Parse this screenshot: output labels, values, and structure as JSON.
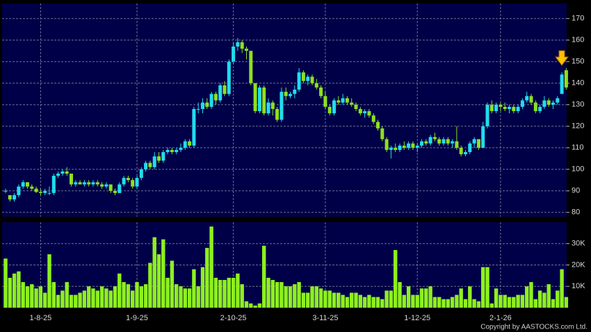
{
  "chart_data": {
    "type": "candlestick",
    "categories": [
      null,
      null,
      null,
      null,
      null,
      null,
      null,
      null,
      "1-8-25",
      null,
      null,
      null,
      null,
      null,
      null,
      null,
      null,
      null,
      null,
      null,
      null,
      null,
      null,
      null,
      null,
      null,
      null,
      null,
      null,
      null,
      "1-9-25",
      null,
      null,
      null,
      null,
      null,
      null,
      null,
      null,
      null,
      null,
      null,
      null,
      null,
      null,
      null,
      null,
      null,
      null,
      null,
      null,
      null,
      "2-10-25",
      null,
      null,
      null,
      null,
      null,
      null,
      null,
      null,
      null,
      null,
      null,
      null,
      null,
      null,
      null,
      null,
      null,
      null,
      null,
      null,
      "3-11-25",
      null,
      null,
      null,
      null,
      null,
      null,
      null,
      null,
      null,
      null,
      null,
      null,
      null,
      null,
      null,
      null,
      null,
      null,
      null,
      null,
      "1-12-25",
      null,
      null,
      null,
      null,
      null,
      null,
      null,
      null,
      null,
      null,
      null,
      null,
      null,
      null,
      null,
      null,
      null,
      null,
      "2-1-26",
      null,
      null,
      null,
      null,
      null,
      null,
      null,
      null,
      null,
      null,
      null,
      null,
      null,
      null,
      null
    ],
    "ohlc": [
      [
        90,
        91,
        89,
        90
      ],
      [
        88,
        88,
        85,
        86
      ],
      [
        86,
        89,
        85,
        88
      ],
      [
        88,
        93,
        87,
        92
      ],
      [
        92,
        95,
        91,
        94
      ],
      [
        94,
        94,
        91,
        92
      ],
      [
        92,
        93,
        90,
        91
      ],
      [
        91,
        92,
        89,
        89.5
      ],
      [
        89.5,
        91,
        88,
        89
      ],
      [
        89,
        91,
        88,
        90
      ],
      [
        89,
        92,
        88,
        89
      ],
      [
        89,
        98,
        88,
        97
      ],
      [
        97,
        99,
        96,
        98
      ],
      [
        98,
        100,
        97,
        99
      ],
      [
        99,
        101,
        97,
        98
      ],
      [
        98,
        98,
        92,
        93
      ],
      [
        93,
        95,
        92,
        94
      ],
      [
        94,
        95,
        93,
        93
      ],
      [
        93,
        95,
        92,
        94
      ],
      [
        94,
        95,
        92,
        93
      ],
      [
        93,
        95,
        92,
        94
      ],
      [
        94,
        95,
        92,
        93
      ],
      [
        93,
        94,
        91,
        92
      ],
      [
        92,
        94,
        91,
        93
      ],
      [
        93,
        93,
        89,
        90
      ],
      [
        90,
        91,
        88,
        89
      ],
      [
        89,
        94,
        89,
        93
      ],
      [
        93,
        97,
        92,
        96
      ],
      [
        96,
        97,
        94,
        95
      ],
      [
        95,
        96,
        91,
        92
      ],
      [
        92,
        97,
        91,
        96
      ],
      [
        96,
        101,
        95,
        100
      ],
      [
        100,
        104,
        99,
        103
      ],
      [
        103,
        104,
        100,
        101
      ],
      [
        101,
        108,
        100,
        106
      ],
      [
        106,
        108,
        103,
        104
      ],
      [
        104,
        109,
        103,
        108
      ],
      [
        108,
        110,
        107,
        109
      ],
      [
        109,
        110,
        107,
        108
      ],
      [
        108,
        110,
        107,
        109
      ],
      [
        109,
        112,
        108,
        110
      ],
      [
        110,
        114,
        109,
        113
      ],
      [
        113,
        114,
        110,
        111
      ],
      [
        111,
        129,
        110,
        128
      ],
      [
        128,
        131,
        126,
        128
      ],
      [
        128,
        133,
        126,
        131
      ],
      [
        131,
        133,
        128,
        129
      ],
      [
        129,
        136,
        128,
        135
      ],
      [
        135,
        136,
        130,
        132
      ],
      [
        132,
        140,
        131,
        139
      ],
      [
        139,
        141,
        134,
        135
      ],
      [
        135,
        151,
        134,
        150
      ],
      [
        150,
        159,
        149,
        157
      ],
      [
        157,
        161,
        155,
        159
      ],
      [
        159,
        160,
        154,
        156
      ],
      [
        156,
        157,
        151,
        155
      ],
      [
        155,
        155,
        139,
        140
      ],
      [
        140,
        140,
        126,
        127
      ],
      [
        127,
        139,
        126,
        138
      ],
      [
        138,
        139,
        125,
        126
      ],
      [
        126,
        133,
        125,
        131
      ],
      [
        131,
        132,
        125,
        128
      ],
      [
        128,
        129,
        122,
        123
      ],
      [
        123,
        138,
        122,
        136
      ],
      [
        136,
        138,
        132,
        134
      ],
      [
        134,
        136,
        133,
        135
      ],
      [
        135,
        139,
        133,
        137
      ],
      [
        137,
        147,
        136,
        145
      ],
      [
        145,
        146,
        140,
        141
      ],
      [
        141,
        144,
        139,
        143
      ],
      [
        143,
        144,
        139,
        140
      ],
      [
        140,
        142,
        137,
        138
      ],
      [
        138,
        139,
        133,
        134
      ],
      [
        134,
        136,
        128,
        129
      ],
      [
        129,
        130,
        125,
        126
      ],
      [
        126,
        133,
        125,
        132
      ],
      [
        132,
        134,
        130,
        131
      ],
      [
        131,
        135,
        130,
        133
      ],
      [
        133,
        134,
        130,
        131
      ],
      [
        131,
        133,
        129,
        130
      ],
      [
        130,
        131,
        127,
        128
      ],
      [
        128,
        129,
        125,
        126
      ],
      [
        126,
        128,
        124,
        127
      ],
      [
        127,
        128,
        124,
        125
      ],
      [
        125,
        126,
        121,
        122
      ],
      [
        122,
        123,
        118,
        119
      ],
      [
        119,
        120,
        113,
        114
      ],
      [
        114,
        115,
        108,
        109
      ],
      [
        109,
        111,
        105,
        110
      ],
      [
        110,
        112,
        108,
        109
      ],
      [
        109,
        112,
        108,
        111
      ],
      [
        111,
        113,
        109,
        110
      ],
      [
        110,
        113,
        109,
        112
      ],
      [
        112,
        113,
        109,
        110
      ],
      [
        110,
        112,
        108,
        111
      ],
      [
        111,
        114,
        110,
        113
      ],
      [
        113,
        114,
        111,
        112
      ],
      [
        112,
        116,
        111,
        115
      ],
      [
        115,
        117,
        113,
        114
      ],
      [
        114,
        115,
        111,
        112
      ],
      [
        112,
        115,
        111,
        114
      ],
      [
        114,
        115,
        111,
        112
      ],
      [
        112,
        114,
        110,
        113
      ],
      [
        113,
        120,
        109,
        110
      ],
      [
        110,
        111,
        106,
        107
      ],
      [
        107,
        109,
        106,
        108
      ],
      [
        108,
        113,
        107,
        112
      ],
      [
        112,
        115,
        110,
        114
      ],
      [
        114,
        114,
        109,
        110
      ],
      [
        110,
        122,
        110,
        120
      ],
      [
        120,
        131,
        119,
        130
      ],
      [
        130,
        132,
        126,
        127
      ],
      [
        127,
        131,
        126,
        130
      ],
      [
        130,
        131,
        127,
        129
      ],
      [
        129,
        131,
        127,
        128
      ],
      [
        128,
        130,
        126,
        129
      ],
      [
        129,
        130,
        126,
        127
      ],
      [
        127,
        130,
        126,
        129
      ],
      [
        129,
        133,
        128,
        132
      ],
      [
        132,
        136,
        131,
        134
      ],
      [
        134,
        135,
        130,
        131
      ],
      [
        131,
        132,
        126,
        127
      ],
      [
        127,
        130,
        126,
        129
      ],
      [
        129,
        134,
        128,
        132
      ],
      [
        132,
        133,
        129,
        130
      ],
      [
        130,
        132,
        128,
        131
      ],
      [
        131,
        134,
        130,
        133
      ],
      [
        135,
        145,
        135,
        144
      ],
      [
        146,
        147,
        137,
        138
      ]
    ],
    "up_color": "#22dcee",
    "down_color": "#8ee01e",
    "ylim": [
      78,
      177
    ],
    "yticks": [
      80,
      90,
      100,
      110,
      120,
      130,
      140,
      150,
      160,
      170
    ],
    "grid": true,
    "volume": {
      "values": [
        23000,
        14000,
        16000,
        17000,
        12000,
        10000,
        11000,
        9000,
        10000,
        7000,
        25000,
        12000,
        6000,
        8000,
        12000,
        6000,
        6000,
        7000,
        8000,
        10000,
        9000,
        8000,
        10000,
        9000,
        8000,
        10000,
        16000,
        12000,
        11000,
        8000,
        12000,
        10000,
        11000,
        21000,
        33000,
        25000,
        32000,
        14000,
        22000,
        11000,
        10000,
        9000,
        9000,
        18000,
        10000,
        19000,
        28000,
        38000,
        14000,
        13000,
        13000,
        14000,
        14000,
        16000,
        11000,
        3000,
        2000,
        1000,
        2000,
        29000,
        14000,
        13000,
        12000,
        12000,
        10000,
        10000,
        11000,
        12000,
        7000,
        7000,
        10000,
        10000,
        9000,
        8000,
        8000,
        7000,
        7000,
        6000,
        5000,
        7000,
        7000,
        6000,
        5000,
        6000,
        5000,
        5000,
        4000,
        8000,
        8000,
        27000,
        12000,
        6000,
        10000,
        6000,
        6000,
        9000,
        9000,
        10000,
        5000,
        5000,
        4000,
        4000,
        5000,
        6000,
        9000,
        4000,
        10000,
        4000,
        3000,
        19000,
        19000,
        2000,
        9000,
        6000,
        6000,
        5000,
        5000,
        6000,
        6000,
        10000,
        12000,
        4000,
        8000,
        7000,
        11000,
        4000,
        8000,
        18000,
        5000
      ],
      "color": "#8ef01e",
      "ylim": [
        0,
        40000
      ],
      "yticks": [
        {
          "value": 10000,
          "label": "10K"
        },
        {
          "value": 20000,
          "label": "20K"
        },
        {
          "value": 30000,
          "label": "30K"
        }
      ]
    },
    "annotations": [
      "Copyright by AASTOCKS.com Ltd."
    ]
  }
}
